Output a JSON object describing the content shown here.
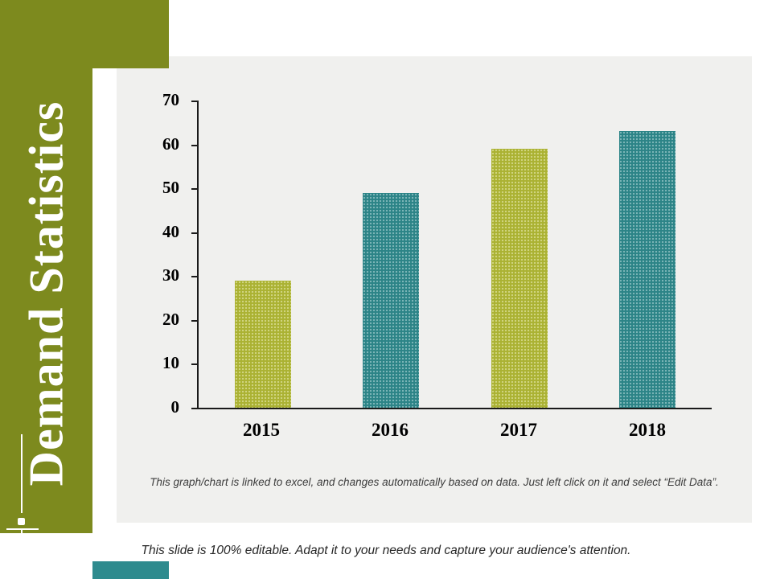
{
  "title": "Demand Statistics",
  "chart_note": "This graph/chart is linked to excel,  and changes automatically based on data. Just left click on it and select “Edit Data”.",
  "footer_note": "This slide is 100% editable. Adapt it to your needs and capture your audience's attention.",
  "colors": {
    "band_olive": "#7d8a1e",
    "bar_olive": "#b4bc36",
    "bar_teal": "#2e8b8e",
    "panel_bg": "#f0f0ee",
    "axis": "#1a1a1a"
  },
  "chart_data": {
    "type": "bar",
    "categories": [
      "2015",
      "2016",
      "2017",
      "2018"
    ],
    "values": [
      29,
      49,
      59,
      63
    ],
    "bar_colors": [
      "#b4bc36",
      "#2e8b8e",
      "#b4bc36",
      "#2e8b8e"
    ],
    "title": "",
    "xlabel": "",
    "ylabel": "",
    "ylim": [
      0,
      70
    ],
    "ytick_step": 10,
    "grid": false,
    "legend": false
  }
}
